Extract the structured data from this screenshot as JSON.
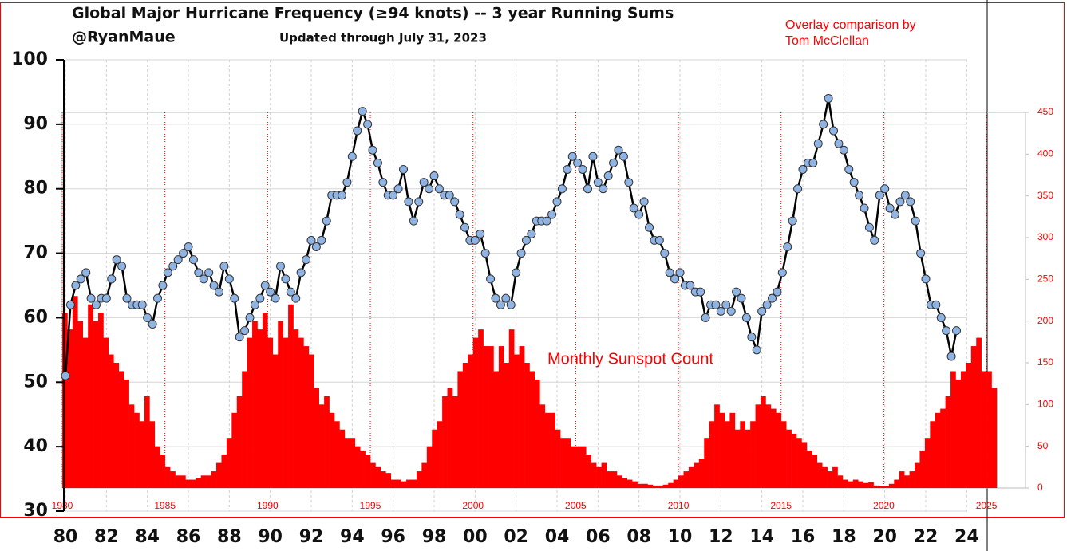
{
  "chart_data": [
    {
      "type": "line",
      "title": "Global Major Hurricane Frequency (≥94 knots)  -- 3 year Running Sums",
      "subtitle": "@RyanMaue",
      "annotation": "Updated through July 31, 2023",
      "color": "#8fb4e3",
      "line_color": "#000000",
      "grid": true,
      "xlim": [
        1980,
        2025
      ],
      "xticks": [
        {
          "value": 1980,
          "label": "80"
        },
        {
          "value": 1982,
          "label": "82"
        },
        {
          "value": 1984,
          "label": "84"
        },
        {
          "value": 1986,
          "label": "86"
        },
        {
          "value": 1988,
          "label": "88"
        },
        {
          "value": 1990,
          "label": "90"
        },
        {
          "value": 1992,
          "label": "92"
        },
        {
          "value": 1994,
          "label": "94"
        },
        {
          "value": 1996,
          "label": "96"
        },
        {
          "value": 1998,
          "label": "98"
        },
        {
          "value": 2000,
          "label": "00"
        },
        {
          "value": 2002,
          "label": "02"
        },
        {
          "value": 2004,
          "label": "04"
        },
        {
          "value": 2006,
          "label": "06"
        },
        {
          "value": 2008,
          "label": "08"
        },
        {
          "value": 2010,
          "label": "10"
        },
        {
          "value": 2012,
          "label": "12"
        },
        {
          "value": 2014,
          "label": "14"
        },
        {
          "value": 2016,
          "label": "16"
        },
        {
          "value": 2018,
          "label": "18"
        },
        {
          "value": 2020,
          "label": "20"
        },
        {
          "value": 2022,
          "label": "22"
        },
        {
          "value": 2024,
          "label": "24"
        }
      ],
      "ylim": [
        30,
        100
      ],
      "yticks": [
        30,
        40,
        50,
        60,
        70,
        80,
        90,
        100
      ],
      "x": [
        1980,
        1980.25,
        1980.5,
        1980.75,
        1981,
        1981.25,
        1981.5,
        1981.75,
        1982,
        1982.25,
        1982.5,
        1982.75,
        1983,
        1983.25,
        1983.5,
        1983.75,
        1984,
        1984.25,
        1984.5,
        1984.75,
        1985,
        1985.25,
        1985.5,
        1985.75,
        1986,
        1986.25,
        1986.5,
        1986.75,
        1987,
        1987.25,
        1987.5,
        1987.75,
        1988,
        1988.25,
        1988.5,
        1988.75,
        1989,
        1989.25,
        1989.5,
        1989.75,
        1990,
        1990.25,
        1990.5,
        1990.75,
        1991,
        1991.25,
        1991.5,
        1991.75,
        1992,
        1992.25,
        1992.5,
        1992.75,
        1993,
        1993.25,
        1993.5,
        1993.75,
        1994,
        1994.25,
        1994.5,
        1994.75,
        1995,
        1995.25,
        1995.5,
        1995.75,
        1996,
        1996.25,
        1996.5,
        1996.75,
        1997,
        1997.25,
        1997.5,
        1997.75,
        1998,
        1998.25,
        1998.5,
        1998.75,
        1999,
        1999.25,
        1999.5,
        1999.75,
        2000,
        2000.25,
        2000.5,
        2000.75,
        2001,
        2001.25,
        2001.5,
        2001.75,
        2002,
        2002.25,
        2002.5,
        2002.75,
        2003,
        2003.25,
        2003.5,
        2003.75,
        2004,
        2004.25,
        2004.5,
        2004.75,
        2005,
        2005.25,
        2005.5,
        2005.75,
        2006,
        2006.25,
        2006.5,
        2006.75,
        2007,
        2007.25,
        2007.5,
        2007.75,
        2008,
        2008.25,
        2008.5,
        2008.75,
        2009,
        2009.25,
        2009.5,
        2009.75,
        2010,
        2010.25,
        2010.5,
        2010.75,
        2011,
        2011.25,
        2011.5,
        2011.75,
        2012,
        2012.25,
        2012.5,
        2012.75,
        2013,
        2013.25,
        2013.5,
        2013.75,
        2014,
        2014.25,
        2014.5,
        2014.75,
        2015,
        2015.25,
        2015.5,
        2015.75,
        2016,
        2016.25,
        2016.5,
        2016.75,
        2017,
        2017.25,
        2017.5,
        2017.75,
        2018,
        2018.25,
        2018.5,
        2018.75,
        2019,
        2019.25,
        2019.5,
        2019.75,
        2020,
        2020.25,
        2020.5,
        2020.75,
        2021,
        2021.25,
        2021.5,
        2021.75,
        2022,
        2022.25,
        2022.5,
        2022.75,
        2023,
        2023.25,
        2023.5
      ],
      "values": [
        51,
        62,
        65,
        66,
        67,
        63,
        62,
        63,
        63,
        66,
        69,
        68,
        63,
        62,
        62,
        62,
        60,
        59,
        63,
        65,
        67,
        68,
        69,
        70,
        71,
        69,
        67,
        66,
        67,
        65,
        64,
        68,
        66,
        63,
        57,
        58,
        60,
        62,
        63,
        65,
        64,
        63,
        68,
        66,
        64,
        63,
        67,
        69,
        72,
        71,
        72,
        75,
        79,
        79,
        79,
        81,
        85,
        89,
        92,
        90,
        86,
        84,
        81,
        79,
        79,
        80,
        83,
        78,
        75,
        78,
        81,
        80,
        82,
        80,
        79,
        79,
        78,
        76,
        74,
        72,
        72,
        73,
        70,
        66,
        63,
        62,
        63,
        62,
        67,
        70,
        72,
        73,
        75,
        75,
        75,
        76,
        78,
        80,
        83,
        85,
        84,
        83,
        80,
        85,
        81,
        80,
        82,
        84,
        86,
        85,
        81,
        77,
        76,
        78,
        74,
        72,
        72,
        70,
        67,
        66,
        67,
        65,
        65,
        64,
        64,
        60,
        62,
        62,
        61,
        62,
        61,
        64,
        63,
        60,
        57,
        55,
        61,
        62,
        63,
        64,
        67,
        71,
        75,
        80,
        83,
        84,
        84,
        87,
        90,
        94,
        89,
        87,
        86,
        83,
        81,
        79,
        77,
        74,
        72,
        79,
        80,
        77,
        76,
        78,
        79,
        78,
        75,
        70,
        66,
        62,
        62,
        60,
        58,
        54,
        58
      ]
    },
    {
      "type": "bar",
      "annotation": "Monthly Sunspot Count",
      "credit": "Overlay comparison by Tom McClellan",
      "color": "#ff0000",
      "grid": true,
      "xlim": [
        1980,
        2026.9
      ],
      "xticks": [
        1980,
        1985,
        1990,
        1995,
        2000,
        2005,
        2010,
        2015,
        2020,
        2025
      ],
      "ylim": [
        0,
        450
      ],
      "yticks": [
        0,
        50,
        100,
        150,
        200,
        250,
        300,
        350,
        400,
        450
      ],
      "x": [
        1980,
        1980.25,
        1980.5,
        1980.75,
        1981,
        1981.25,
        1981.5,
        1981.75,
        1982,
        1982.25,
        1982.5,
        1982.75,
        1983,
        1983.25,
        1983.5,
        1983.75,
        1984,
        1984.25,
        1984.5,
        1984.75,
        1985,
        1985.25,
        1985.5,
        1985.75,
        1986,
        1986.25,
        1986.5,
        1986.75,
        1987,
        1987.25,
        1987.5,
        1987.75,
        1988,
        1988.25,
        1988.5,
        1988.75,
        1989,
        1989.25,
        1989.5,
        1989.75,
        1990,
        1990.25,
        1990.5,
        1990.75,
        1991,
        1991.25,
        1991.5,
        1991.75,
        1992,
        1992.25,
        1992.5,
        1992.75,
        1993,
        1993.25,
        1993.5,
        1993.75,
        1994,
        1994.25,
        1994.5,
        1994.75,
        1995,
        1995.25,
        1995.5,
        1995.75,
        1996,
        1996.25,
        1996.5,
        1996.75,
        1997,
        1997.25,
        1997.5,
        1997.75,
        1998,
        1998.25,
        1998.5,
        1998.75,
        1999,
        1999.25,
        1999.5,
        1999.75,
        2000,
        2000.25,
        2000.5,
        2000.75,
        2001,
        2001.25,
        2001.5,
        2001.75,
        2002,
        2002.25,
        2002.5,
        2002.75,
        2003,
        2003.25,
        2003.5,
        2003.75,
        2004,
        2004.25,
        2004.5,
        2004.75,
        2005,
        2005.25,
        2005.5,
        2005.75,
        2006,
        2006.25,
        2006.5,
        2006.75,
        2007,
        2007.25,
        2007.5,
        2007.75,
        2008,
        2008.25,
        2008.5,
        2008.75,
        2009,
        2009.25,
        2009.5,
        2009.75,
        2010,
        2010.25,
        2010.5,
        2010.75,
        2011,
        2011.25,
        2011.5,
        2011.75,
        2012,
        2012.25,
        2012.5,
        2012.75,
        2013,
        2013.25,
        2013.5,
        2013.75,
        2014,
        2014.25,
        2014.5,
        2014.75,
        2015,
        2015.25,
        2015.5,
        2015.75,
        2016,
        2016.25,
        2016.5,
        2016.75,
        2017,
        2017.25,
        2017.5,
        2017.75,
        2018,
        2018.25,
        2018.5,
        2018.75,
        2019,
        2019.25,
        2019.5,
        2019.75,
        2020,
        2020.25,
        2020.5,
        2020.75,
        2021,
        2021.25,
        2021.5,
        2021.75,
        2022,
        2022.25,
        2022.5,
        2022.75,
        2023,
        2023.25,
        2023.5,
        2023.75,
        2024,
        2024.25,
        2024.5,
        2024.75,
        2025,
        2025.25
      ],
      "values": [
        210,
        190,
        230,
        200,
        180,
        220,
        200,
        210,
        180,
        160,
        150,
        140,
        130,
        100,
        90,
        80,
        110,
        80,
        50,
        40,
        25,
        20,
        15,
        15,
        10,
        10,
        12,
        15,
        15,
        20,
        30,
        40,
        60,
        90,
        110,
        140,
        180,
        200,
        190,
        210,
        180,
        160,
        200,
        180,
        220,
        190,
        180,
        170,
        160,
        120,
        100,
        110,
        90,
        80,
        70,
        60,
        60,
        50,
        45,
        40,
        30,
        25,
        20,
        18,
        10,
        10,
        8,
        10,
        10,
        20,
        30,
        50,
        70,
        80,
        110,
        120,
        110,
        140,
        150,
        160,
        180,
        190,
        170,
        170,
        140,
        170,
        150,
        190,
        160,
        170,
        150,
        140,
        130,
        100,
        90,
        90,
        70,
        60,
        60,
        50,
        50,
        50,
        40,
        30,
        25,
        30,
        20,
        20,
        15,
        12,
        10,
        8,
        5,
        5,
        4,
        3,
        3,
        4,
        6,
        10,
        15,
        20,
        25,
        30,
        35,
        60,
        80,
        100,
        90,
        80,
        90,
        70,
        80,
        70,
        80,
        100,
        110,
        100,
        95,
        90,
        80,
        70,
        65,
        60,
        55,
        45,
        40,
        30,
        25,
        20,
        25,
        15,
        10,
        8,
        10,
        8,
        6,
        7,
        3,
        2,
        2,
        5,
        10,
        20,
        15,
        20,
        30,
        45,
        60,
        80,
        90,
        95,
        110,
        140,
        130,
        140,
        150,
        170,
        180,
        140,
        140,
        120
      ]
    }
  ]
}
